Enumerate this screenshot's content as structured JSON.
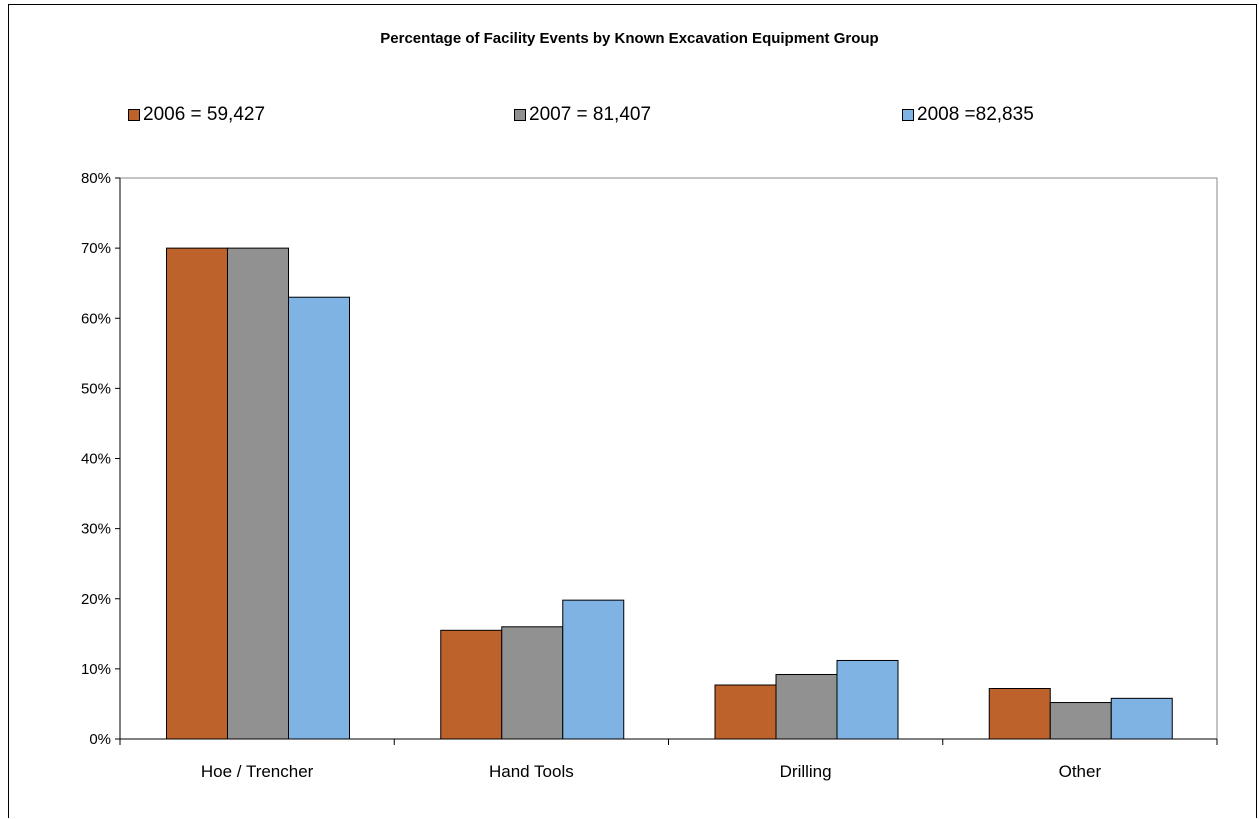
{
  "chart_data": {
    "type": "bar",
    "title": "Percentage of Facility Events by Known Excavation Equipment Group",
    "categories": [
      "Hoe / Trencher",
      "Hand Tools",
      "Drilling",
      "Other"
    ],
    "series": [
      {
        "name": "2006 = 59,427",
        "color": "#BE622B",
        "values": [
          70,
          15.5,
          7.7,
          7.2
        ]
      },
      {
        "name": "2007 = 81,407",
        "color": "#919191",
        "values": [
          70,
          16,
          9.2,
          5.2
        ]
      },
      {
        "name": "2008 =82,835",
        "color": "#7FB3E3",
        "values": [
          63,
          19.8,
          11.2,
          5.8
        ]
      }
    ],
    "y_ticks": [
      "0%",
      "10%",
      "20%",
      "30%",
      "40%",
      "50%",
      "60%",
      "70%",
      "80%"
    ],
    "ylim": [
      0,
      80
    ],
    "legend_position": "top",
    "grid": false
  }
}
